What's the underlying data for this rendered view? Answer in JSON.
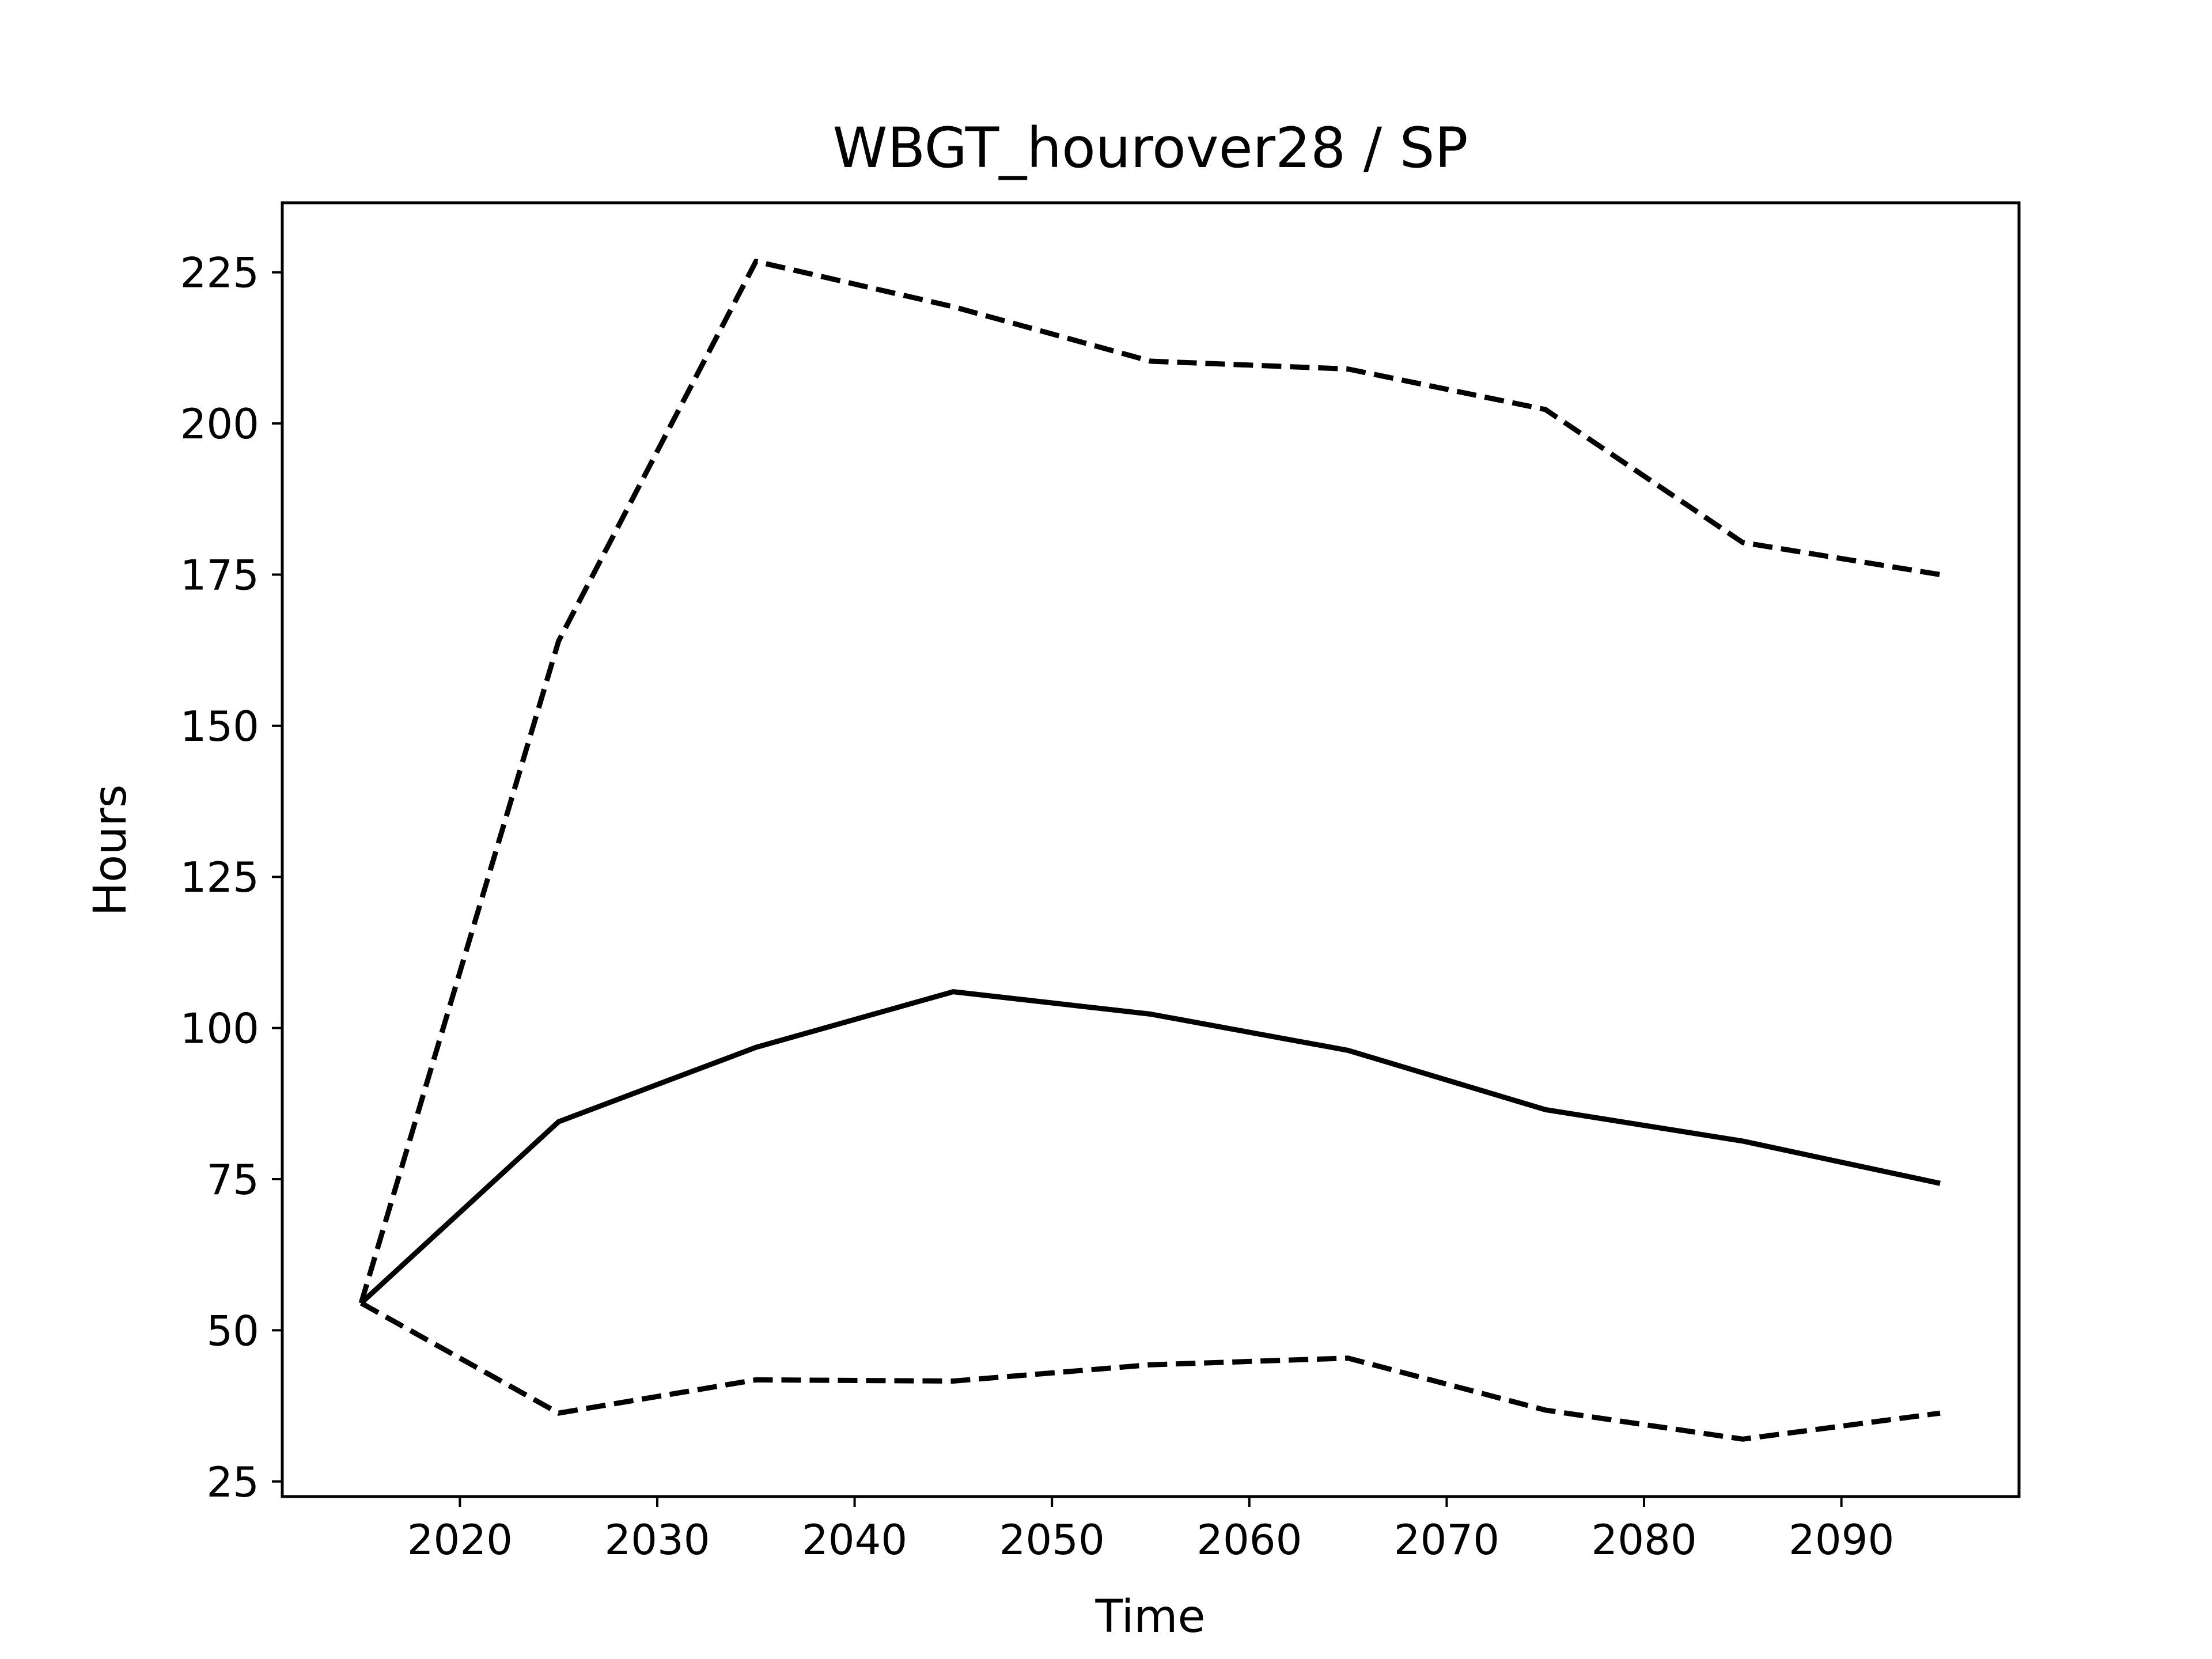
{
  "chart_data": {
    "type": "line",
    "title": "WBGT_hourover28 / SP",
    "xlabel": "Time",
    "ylabel": "Hours",
    "xlim": [
      2011,
      2099
    ],
    "ylim": [
      22.5,
      236.5
    ],
    "xticks": [
      2020,
      2030,
      2040,
      2050,
      2060,
      2070,
      2080,
      2090
    ],
    "yticks": [
      25,
      50,
      75,
      100,
      125,
      150,
      175,
      200,
      225
    ],
    "grid": false,
    "legend": "none",
    "x": [
      2015,
      2025,
      2035,
      2045,
      2055,
      2065,
      2075,
      2085,
      2095
    ],
    "series": [
      {
        "values": [
          54.5,
          84.5,
          96.8,
          106.0,
          102.3,
          96.3,
          86.5,
          81.3,
          74.3
        ],
        "style": "solid",
        "color": "#000000"
      },
      {
        "values": [
          54.5,
          164.0,
          226.8,
          219.3,
          210.3,
          209.0,
          202.3,
          180.3,
          175.0
        ],
        "style": "dashed",
        "color": "#000000"
      },
      {
        "values": [
          54.5,
          36.3,
          41.8,
          41.6,
          44.3,
          45.4,
          36.8,
          32.0,
          36.3
        ],
        "style": "dashed",
        "color": "#000000"
      }
    ]
  }
}
